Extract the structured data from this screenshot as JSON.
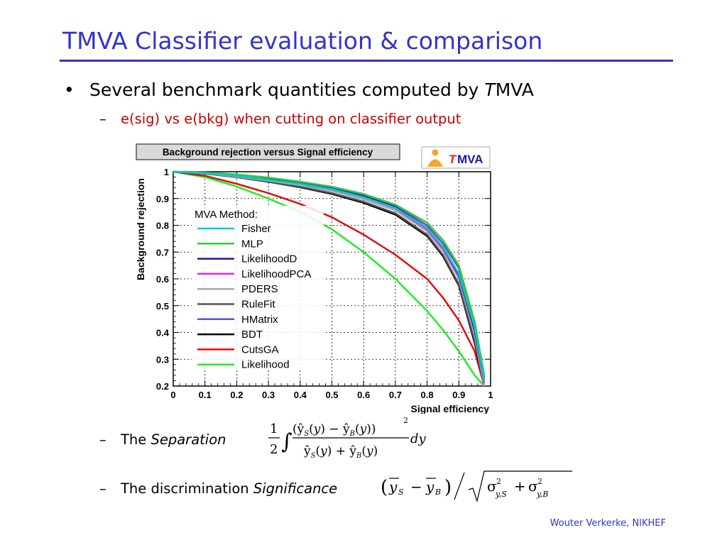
{
  "slide": {
    "title": "TMVA Classifier evaluation & comparison",
    "bullet_dot": "•",
    "bullet_text_1": "Several benchmark quantities computed by ",
    "bullet_text_T": "T",
    "bullet_text_2": "MVA",
    "dash": "–",
    "sub_bullet": "e(sig) vs e(bkg) when cutting on  classifier output",
    "separation_prefix": "The ",
    "separation_italic": "Separation",
    "significance_prefix": "The discrimination ",
    "significance_italic": "Significance",
    "footer": "Wouter Verkerke, NIKHEF"
  },
  "logo": {
    "text_T": "T",
    "text_rest": "MVA"
  },
  "chart_data": {
    "type": "line",
    "title": "Background rejection versus Signal efficiency",
    "xlabel": "Signal efficiency",
    "ylabel": "Background rejection",
    "xlim": [
      0,
      1
    ],
    "ylim": [
      0.2,
      1
    ],
    "xticks": [
      "0",
      "0.1",
      "0.2",
      "0.3",
      "0.4",
      "0.5",
      "0.6",
      "0.7",
      "0.8",
      "0.9",
      "1"
    ],
    "yticks": [
      "0.2",
      "0.3",
      "0.4",
      "0.5",
      "0.6",
      "0.7",
      "0.8",
      "0.9",
      "1"
    ],
    "grid": true,
    "legend_title": "MVA Method:",
    "legend_position": "left",
    "x": [
      0,
      0.1,
      0.2,
      0.3,
      0.4,
      0.5,
      0.6,
      0.7,
      0.8,
      0.85,
      0.9,
      0.95,
      0.98
    ],
    "series": [
      {
        "name": "Fisher",
        "color": "#00cccc",
        "values": [
          1.0,
          0.995,
          0.985,
          0.97,
          0.955,
          0.935,
          0.905,
          0.865,
          0.79,
          0.72,
          0.62,
          0.42,
          0.22
        ]
      },
      {
        "name": "MLP",
        "color": "#33cc33",
        "values": [
          1.0,
          0.997,
          0.99,
          0.978,
          0.963,
          0.944,
          0.917,
          0.877,
          0.81,
          0.745,
          0.65,
          0.44,
          0.24
        ]
      },
      {
        "name": "LikelihoodD",
        "color": "#1a1aaa",
        "values": [
          1.0,
          0.996,
          0.987,
          0.974,
          0.958,
          0.938,
          0.908,
          0.868,
          0.79,
          0.72,
          0.615,
          0.41,
          0.22
        ]
      },
      {
        "name": "LikelihoodPCA",
        "color": "#ee22ee",
        "values": [
          1.0,
          0.995,
          0.985,
          0.971,
          0.955,
          0.934,
          0.904,
          0.863,
          0.785,
          0.713,
          0.61,
          0.405,
          0.21
        ]
      },
      {
        "name": "PDERS",
        "color": "#aaaaaa",
        "values": [
          1.0,
          0.994,
          0.982,
          0.967,
          0.95,
          0.928,
          0.897,
          0.856,
          0.777,
          0.705,
          0.6,
          0.39,
          0.2
        ]
      },
      {
        "name": "RuleFit",
        "color": "#555555",
        "values": [
          1.0,
          0.993,
          0.98,
          0.963,
          0.944,
          0.92,
          0.888,
          0.845,
          0.765,
          0.69,
          0.58,
          0.37,
          0.2
        ]
      },
      {
        "name": "HMatrix",
        "color": "#5555cc",
        "values": [
          1.0,
          0.996,
          0.988,
          0.975,
          0.96,
          0.94,
          0.912,
          0.873,
          0.8,
          0.733,
          0.64,
          0.44,
          0.23
        ]
      },
      {
        "name": "BDT",
        "color": "#000000",
        "values": [
          1.0,
          0.993,
          0.98,
          0.962,
          0.942,
          0.917,
          0.884,
          0.84,
          0.76,
          0.685,
          0.575,
          0.36,
          0.2
        ]
      },
      {
        "name": "CutsGA",
        "color": "#dd1111",
        "values": [
          1.0,
          0.985,
          0.955,
          0.92,
          0.88,
          0.83,
          0.765,
          0.69,
          0.6,
          0.53,
          0.445,
          0.33,
          0.2
        ]
      },
      {
        "name": "Likelihood",
        "color": "#22ee22",
        "values": [
          1.0,
          0.98,
          0.945,
          0.9,
          0.85,
          0.785,
          0.7,
          0.6,
          0.48,
          0.41,
          0.33,
          0.24,
          0.2
        ]
      }
    ]
  }
}
